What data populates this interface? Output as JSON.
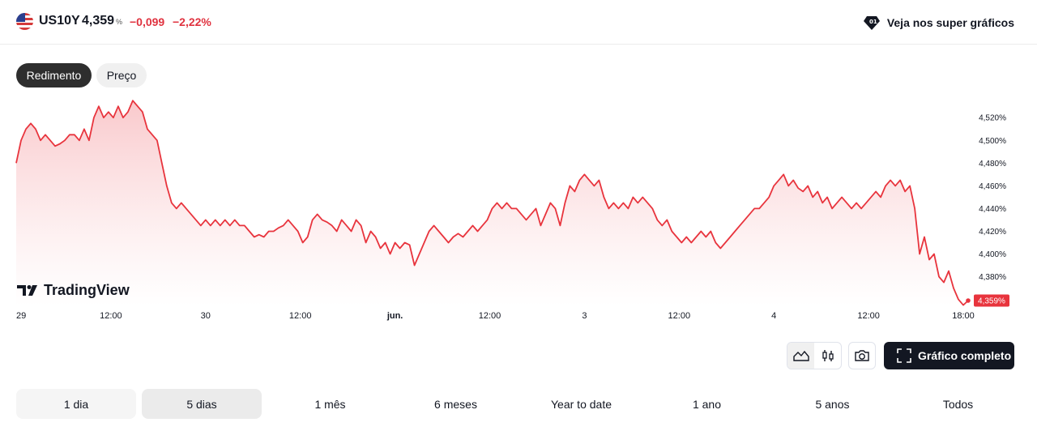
{
  "header": {
    "symbol": "US10Y",
    "price": "4,359",
    "price_unit": "%",
    "change": "−0,099",
    "change_percent": "−2,22%",
    "promo_label": "Veja nos super gráficos",
    "flag_icon": "us-flag-icon",
    "promo_icon": "diamond-icon"
  },
  "tabs": [
    {
      "label": "Redimento",
      "active": true
    },
    {
      "label": "Preço",
      "active": false
    }
  ],
  "logo_text": "TradingView",
  "toolbar": {
    "full_chart_label": "Gráfico completo",
    "icons": [
      "area-chart-icon",
      "candles-icon",
      "camera-icon",
      "fullscreen-icon"
    ]
  },
  "ranges": [
    "1 dia",
    "5 dias",
    "1 mês",
    "6 meses",
    "Year to date",
    "1 ano",
    "5 anos",
    "Todos"
  ],
  "selected_range": "5 dias",
  "colors": {
    "line": "#e8343d",
    "fill_top": "#f9c6c9",
    "accent_negative": "#e0323f",
    "dark": "#131722"
  },
  "chart_data": {
    "type": "area",
    "x_tick_labels": [
      "29",
      "12:00",
      "30",
      "12:00",
      "jun.",
      "12:00",
      "3",
      "12:00",
      "4",
      "12:00",
      "18:00"
    ],
    "y_tick_labels": [
      "4,520%",
      "4,500%",
      "4,480%",
      "4,460%",
      "4,440%",
      "4,420%",
      "4,400%",
      "4,380%"
    ],
    "y_ticks": [
      4.52,
      4.5,
      4.48,
      4.46,
      4.44,
      4.42,
      4.4,
      4.38
    ],
    "ylim": [
      4.354,
      4.538
    ],
    "last_value_label": "4,359%",
    "grid": false,
    "series": [
      {
        "values": [
          4.48,
          4.5,
          4.51,
          4.515,
          4.51,
          4.5,
          4.505,
          4.5,
          4.495,
          4.497,
          4.5,
          4.505,
          4.505,
          4.5,
          4.51,
          4.5,
          4.52,
          4.53,
          4.52,
          4.525,
          4.52,
          4.53,
          4.52,
          4.525,
          4.535,
          4.53,
          4.525,
          4.51,
          4.505,
          4.5,
          4.48,
          4.46,
          4.445,
          4.44,
          4.445,
          4.44,
          4.435,
          4.43,
          4.425,
          4.43,
          4.425,
          4.43,
          4.425,
          4.43,
          4.425,
          4.43,
          4.425,
          4.425,
          4.42,
          4.415,
          4.417,
          4.415,
          4.42,
          4.42,
          4.423,
          4.425,
          4.43,
          4.425,
          4.42,
          4.41,
          4.415,
          4.43,
          4.435,
          4.43,
          4.428,
          4.425,
          4.42,
          4.43,
          4.425,
          4.42,
          4.43,
          4.425,
          4.41,
          4.42,
          4.415,
          4.405,
          4.41,
          4.4,
          4.41,
          4.405,
          4.41,
          4.408,
          4.39,
          4.4,
          4.41,
          4.42,
          4.425,
          4.42,
          4.415,
          4.41,
          4.415,
          4.418,
          4.415,
          4.42,
          4.425,
          4.42,
          4.425,
          4.43,
          4.44,
          4.445,
          4.44,
          4.445,
          4.44,
          4.44,
          4.435,
          4.43,
          4.435,
          4.44,
          4.425,
          4.435,
          4.445,
          4.44,
          4.425,
          4.445,
          4.46,
          4.455,
          4.465,
          4.47,
          4.465,
          4.46,
          4.465,
          4.45,
          4.44,
          4.445,
          4.44,
          4.445,
          4.44,
          4.45,
          4.445,
          4.45,
          4.445,
          4.44,
          4.43,
          4.425,
          4.43,
          4.42,
          4.415,
          4.41,
          4.415,
          4.41,
          4.415,
          4.42,
          4.415,
          4.42,
          4.41,
          4.405,
          4.41,
          4.415,
          4.42,
          4.425,
          4.43,
          4.435,
          4.44,
          4.44,
          4.445,
          4.45,
          4.46,
          4.465,
          4.47,
          4.46,
          4.465,
          4.458,
          4.455,
          4.46,
          4.45,
          4.455,
          4.445,
          4.45,
          4.44,
          4.445,
          4.45,
          4.445,
          4.44,
          4.445,
          4.44,
          4.445,
          4.45,
          4.455,
          4.45,
          4.46,
          4.465,
          4.46,
          4.465,
          4.455,
          4.46,
          4.44,
          4.4,
          4.415,
          4.395,
          4.4,
          4.38,
          4.375,
          4.385,
          4.37,
          4.36,
          4.355,
          4.359
        ]
      }
    ]
  }
}
